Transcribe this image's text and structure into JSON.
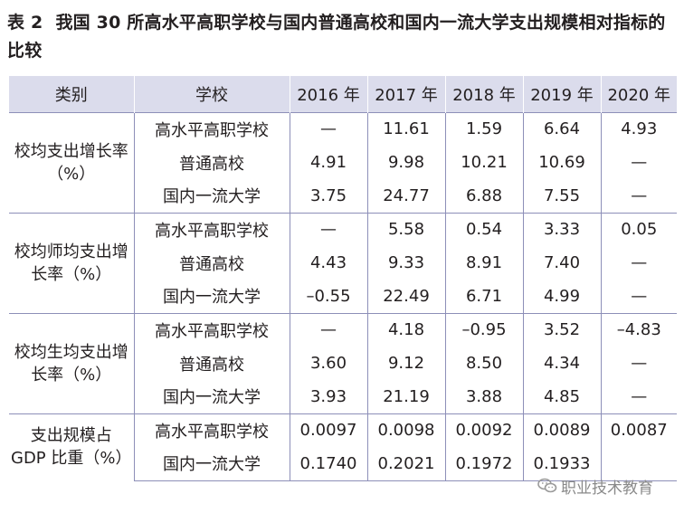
{
  "caption": {
    "number": "表 2",
    "title": "我国 30 所高水平高职学校与国内普通高校和国内一流大学支出规模相对指标的比较"
  },
  "table": {
    "headers": [
      "类别",
      "学校",
      "2016 年",
      "2017 年",
      "2018 年",
      "2019 年",
      "2020 年"
    ],
    "groups": [
      {
        "category": "校均支出增长率（%）",
        "rows": [
          {
            "school": "高水平高职学校",
            "values": [
              "—",
              "11.61",
              "1.59",
              "6.64",
              "4.93"
            ]
          },
          {
            "school": "普通高校",
            "values": [
              "4.91",
              "9.98",
              "10.21",
              "10.69",
              "—"
            ]
          },
          {
            "school": "国内一流大学",
            "values": [
              "3.75",
              "24.77",
              "6.88",
              "7.55",
              "—"
            ]
          }
        ]
      },
      {
        "category": "校均师均支出增长率（%）",
        "rows": [
          {
            "school": "高水平高职学校",
            "values": [
              "—",
              "5.58",
              "0.54",
              "3.33",
              "0.05"
            ]
          },
          {
            "school": "普通高校",
            "values": [
              "4.43",
              "9.33",
              "8.91",
              "7.40",
              "—"
            ]
          },
          {
            "school": "国内一流大学",
            "values": [
              "–0.55",
              "22.49",
              "6.71",
              "4.99",
              "—"
            ]
          }
        ]
      },
      {
        "category": "校均生均支出增长率（%）",
        "rows": [
          {
            "school": "高水平高职学校",
            "values": [
              "—",
              "4.18",
              "–0.95",
              "3.52",
              "–4.83"
            ]
          },
          {
            "school": "普通高校",
            "values": [
              "3.60",
              "9.12",
              "8.50",
              "4.34",
              "—"
            ]
          },
          {
            "school": "国内一流大学",
            "values": [
              "3.93",
              "21.19",
              "3.88",
              "4.85",
              "—"
            ]
          }
        ]
      },
      {
        "category": "支出规模占 GDP 比重（%）",
        "rows": [
          {
            "school": "高水平高职学校",
            "values": [
              "0.0097",
              "0.0098",
              "0.0092",
              "0.0089",
              "0.0087"
            ]
          },
          {
            "school": "国内一流大学",
            "values": [
              "0.1740",
              "0.2021",
              "0.1972",
              "0.1933",
              ""
            ]
          }
        ]
      }
    ]
  },
  "watermark": {
    "text": "职业技术教育",
    "icon": "wechat-icon"
  }
}
